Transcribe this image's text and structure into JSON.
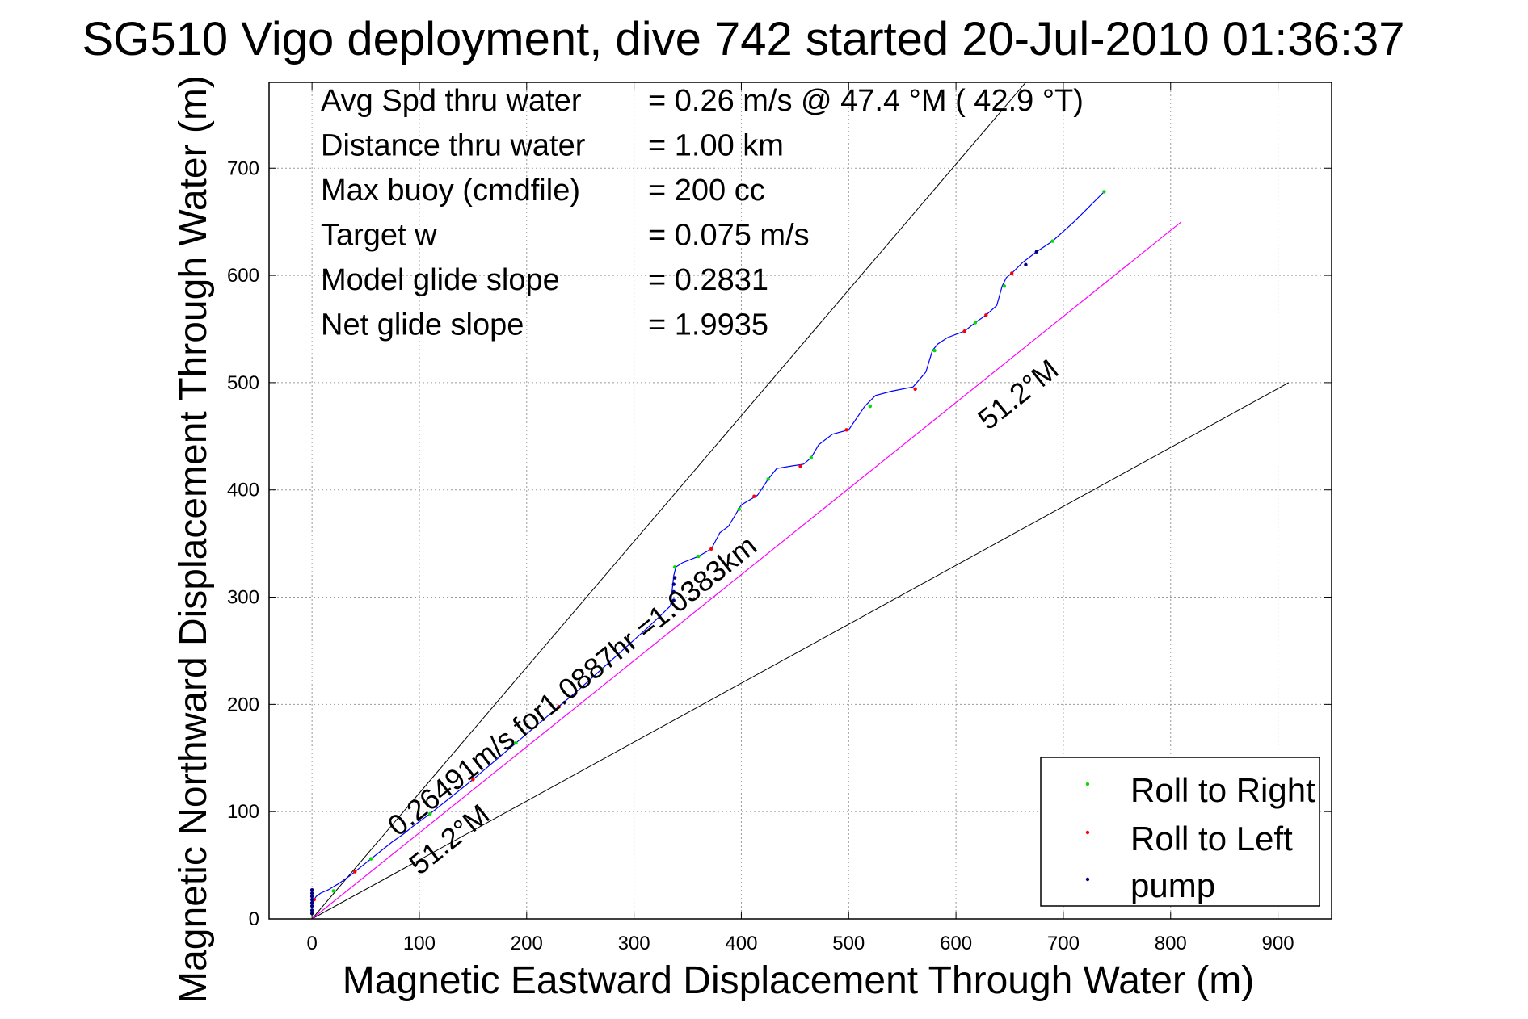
{
  "chart_data": {
    "type": "line",
    "title": "SG510 Vigo deployment, dive 742 started 20-Jul-2010 01:36:37",
    "xlabel": "Magnetic Eastward Displacement Through Water (m)",
    "ylabel": "Magnetic Northward Displacement Through Water (m)",
    "xlim": [
      -40,
      950
    ],
    "ylim": [
      0,
      780
    ],
    "xticks": [
      0,
      100,
      200,
      300,
      400,
      500,
      600,
      700,
      800,
      900
    ],
    "yticks": [
      0,
      100,
      200,
      300,
      400,
      500,
      600,
      700
    ],
    "grid": true,
    "legend_position": "bottom-right",
    "stats": [
      {
        "label": "Avg Spd thru water",
        "value": "=  0.26 m/s @  47.4 °M ( 42.9 °T)"
      },
      {
        "label": "Distance thru water",
        "value": "=  1.00 km"
      },
      {
        "label": "Max buoy (cmdfile)",
        "value": "= 200 cc"
      },
      {
        "label": "Target w",
        "value": "= 0.075 m/s"
      },
      {
        "label": "Model glide slope",
        "value": "= 0.2831"
      },
      {
        "label": "Net glide slope",
        "value": "= 1.9935"
      }
    ],
    "track": {
      "color": "#0000ff",
      "x": [
        0,
        2,
        4,
        8,
        15,
        25,
        35,
        45,
        55,
        65,
        75,
        85,
        95,
        110,
        130,
        150,
        170,
        190,
        210,
        230,
        250,
        270,
        290,
        310,
        325,
        334,
        337,
        339,
        345,
        360,
        372,
        380,
        388,
        400,
        415,
        425,
        433,
        445,
        458,
        465,
        472,
        485,
        500,
        515,
        525,
        540,
        560,
        572,
        578,
        583,
        592,
        608,
        618,
        628,
        638,
        643,
        647,
        652,
        662,
        675,
        690,
        710,
        738
      ],
      "y": [
        12,
        18,
        21,
        24,
        27,
        33,
        40,
        48,
        56,
        64,
        72,
        79,
        87,
        98,
        114,
        130,
        147,
        164,
        181,
        198,
        215,
        233,
        251,
        269,
        283,
        292,
        320,
        328,
        332,
        338,
        345,
        360,
        366,
        386,
        395,
        410,
        420,
        422,
        424,
        430,
        442,
        452,
        456,
        478,
        488,
        492,
        496,
        510,
        530,
        536,
        542,
        548,
        556,
        563,
        572,
        590,
        598,
        602,
        612,
        622,
        632,
        650,
        678
      ]
    },
    "heading_line": {
      "label": "51.2°M",
      "color": "#ff00ff",
      "from": [
        0,
        0
      ],
      "to": [
        810,
        650
      ]
    },
    "bounding_lines": [
      {
        "from": [
          0,
          0
        ],
        "to": [
          665,
          780
        ]
      },
      {
        "from": [
          0,
          0
        ],
        "to": [
          910,
          500
        ]
      }
    ],
    "annotations": [
      {
        "text": "0.26491m/s for1.0887hr =1.0383km",
        "x": 80,
        "y": 76,
        "angle": -38.6
      },
      {
        "text": "51.2°M",
        "x": 630,
        "y": 455,
        "angle": -38.6
      },
      {
        "text": "51.2°M",
        "x": 100,
        "y": 40,
        "angle": -38.6
      }
    ],
    "series": [
      {
        "name": "Roll to Right",
        "color": "#00dd00",
        "x": [
          20,
          55,
          110,
          190,
          270,
          338,
          360,
          398,
          425,
          465,
          520,
          580,
          618,
          645,
          690,
          738
        ],
        "y": [
          26,
          56,
          98,
          164,
          233,
          328,
          338,
          382,
          410,
          430,
          478,
          530,
          556,
          590,
          632,
          678
        ]
      },
      {
        "name": "Roll to Left",
        "color": "#ff0000",
        "x": [
          2,
          40,
          150,
          230,
          372,
          412,
          455,
          498,
          562,
          608,
          628,
          652
        ],
        "y": [
          18,
          44,
          130,
          198,
          345,
          394,
          422,
          456,
          494,
          548,
          563,
          602
        ]
      },
      {
        "name": "pump",
        "color": "#000080",
        "x": [
          0,
          0,
          0,
          0,
          0,
          0,
          0,
          0,
          337,
          337,
          337,
          338,
          665,
          675
        ],
        "y": [
          5,
          8,
          12,
          15,
          18,
          21,
          24,
          27,
          297,
          305,
          312,
          318,
          610,
          622
        ]
      }
    ]
  }
}
